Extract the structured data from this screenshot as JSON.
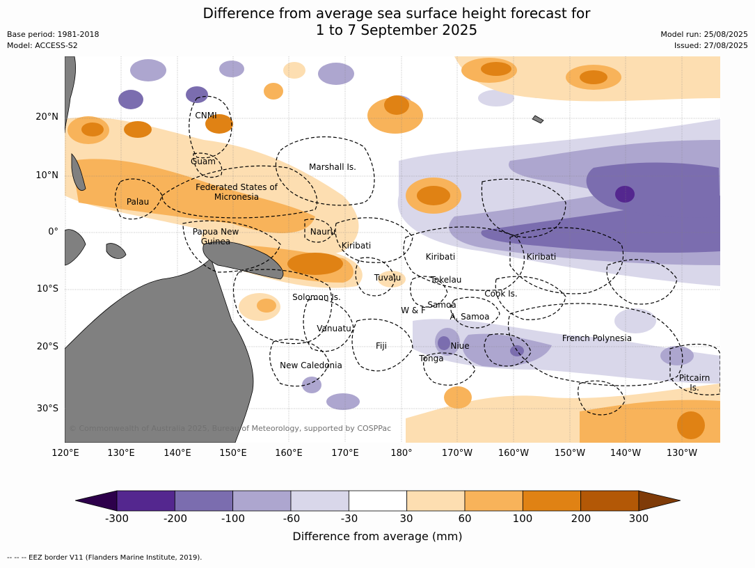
{
  "title": "Difference from average sea surface height forecast for",
  "title_line2": "1 to 7 September 2025",
  "meta_left": [
    "Base period: 1981-2018",
    "Model: ACCESS-S2"
  ],
  "meta_right": [
    "Model run: 25/08/2025",
    "Issued: 27/08/2025"
  ],
  "lat_labels": [
    "20°N",
    "10°N",
    "0°",
    "10°S",
    "20°S",
    "30°S"
  ],
  "lon_labels": [
    "120°E",
    "130°E",
    "140°E",
    "150°E",
    "160°E",
    "170°E",
    "180°",
    "170°W",
    "160°W",
    "150°W",
    "140°W",
    "130°W"
  ],
  "region_labels": [
    {
      "name": "CNMI"
    },
    {
      "name": "Guam"
    },
    {
      "name": "Marshall Is."
    },
    {
      "name": "Federated States of Micronesia"
    },
    {
      "name": "Palau"
    },
    {
      "name": "Nauru"
    },
    {
      "name": "Papua New Guinea"
    },
    {
      "name": "Kiribati"
    },
    {
      "name": "Kiribati"
    },
    {
      "name": "Kiribati"
    },
    {
      "name": "Tuvalu"
    },
    {
      "name": "Tokelau"
    },
    {
      "name": "Cook Is."
    },
    {
      "name": "Solomon Is."
    },
    {
      "name": "Samoa"
    },
    {
      "name": "W & F"
    },
    {
      "name": "A. Samoa"
    },
    {
      "name": "Vanuatu"
    },
    {
      "name": "Fiji"
    },
    {
      "name": "Niue"
    },
    {
      "name": "French Polynesia"
    },
    {
      "name": "Tonga"
    },
    {
      "name": "New Caledonia"
    },
    {
      "name": "Pitcairn Is."
    }
  ],
  "copyright": "© Commonwealth of Australia 2025, Bureau of Meteorology, supported by COSPPac",
  "colorbar": {
    "title": "Difference from average (mm)",
    "ticks": [
      "-300",
      "-200",
      "-100",
      "-60",
      "-30",
      "30",
      "60",
      "100",
      "200",
      "300"
    ],
    "colors": [
      "#54278f",
      "#7b6daf",
      "#ada6cf",
      "#d9d7ea",
      "#ffffff",
      "#fddeb1",
      "#f8b35a",
      "#e08214",
      "#b35806"
    ],
    "under_color": "#2d004b",
    "over_color": "#7f3b08"
  },
  "eez_note": "-- -- -- EEZ border V11 (Flanders Marine Institute, 2019).",
  "colors": {
    "land": "#808080",
    "grid": "#808080",
    "eez": "#000000"
  }
}
